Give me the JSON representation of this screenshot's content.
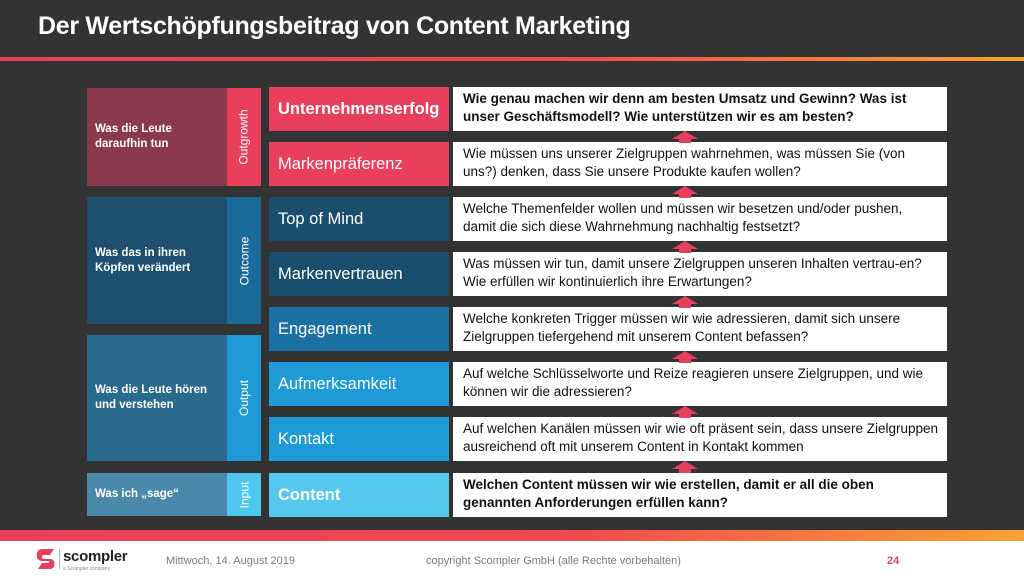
{
  "title": "Der Wertschöpfungsbeitrag von Content Marketing",
  "groups": [
    {
      "label": "Was die Leute daraufhin tun",
      "tag": "Outgrowth",
      "label_color": "#8b3a4b",
      "tag_color": "#e8405c"
    },
    {
      "label": "Was das in ihren Köpfen verändert",
      "tag": "Outcome",
      "label_color": "#1e4f6e",
      "tag_color": "#1b6b9a"
    },
    {
      "label": "Was die Leute hören und verstehen",
      "tag": "Output",
      "label_color": "#2a6a8c",
      "tag_color": "#1f9ad6"
    },
    {
      "label": "Was ich „sage“",
      "tag": "Input",
      "label_color": "#4a89a9",
      "tag_color": "#4ec7ef"
    }
  ],
  "rows": [
    {
      "label": "Unternehmenserfolg",
      "color": "#e8405c",
      "description": "Wie genau machen wir denn am besten Umsatz und Gewinn? Was ist unser Geschäftsmodell? Wie unterstützen wir es am besten?"
    },
    {
      "label": "Markenpräferenz",
      "color": "#e8405c",
      "description": "Wie müssen uns unserer Zielgruppen wahrnehmen, was müssen Sie (von uns?) denken, dass Sie unsere Produkte kaufen wollen?"
    },
    {
      "label": "Top of Mind",
      "color": "#1a4e6d",
      "description": "Welche Themenfelder wollen und müssen wir besetzen und/oder pushen, damit die sich diese Wahrnehmung nachhaltig festsetzt?"
    },
    {
      "label": "Markenvertrauen",
      "color": "#1a4e6d",
      "description": "Was müssen wir tun, damit unsere Zielgruppen unseren Inhalten vertrau-en? Wie erfüllen wir kontinuierlich ihre Erwartungen?"
    },
    {
      "label": "Engagement",
      "color": "#1b71a3",
      "description": "Welche konkreten Trigger müssen wir wie adressieren, damit sich unsere Zielgruppen tiefergehend mit unserem Content befassen?"
    },
    {
      "label": "Aufmerksamkeit",
      "color": "#1e9ad7",
      "description": "Auf welche Schlüsselworte und Reize reagieren unsere Zielgruppen, und wie können wir die adressieren?"
    },
    {
      "label": "Kontakt",
      "color": "#1e9ad7",
      "description": "Auf welchen Kanälen müssen wir wie oft präsent sein, dass unsere Zielgruppen ausreichend oft mit unserem Content in Kontakt kommen"
    },
    {
      "label": "Content",
      "color": "#55c8f0",
      "description": "Welchen Content müssen wir wie erstellen, damit er all die oben genannten Anforderungen erfüllen kann?"
    }
  ],
  "arrow_color": "#e8405c",
  "footer": {
    "logo_text": "scompler",
    "logo_sub": "a Scompler company",
    "date": "Mittwoch, 14. August 2019",
    "copyright": "copyright Scompler GmbH (alle Rechte vorbehalten)",
    "page": "24"
  }
}
